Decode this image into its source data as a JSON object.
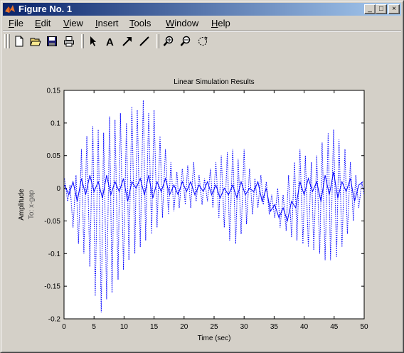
{
  "window": {
    "title": "Figure No. 1"
  },
  "title_buttons": {
    "minimize": "_",
    "maximize": "□",
    "close": "×"
  },
  "menu": [
    {
      "label": "File",
      "u": "F",
      "rest": "ile"
    },
    {
      "label": "Edit",
      "u": "E",
      "rest": "dit"
    },
    {
      "label": "View",
      "u": "V",
      "rest": "iew"
    },
    {
      "label": "Insert",
      "u": "I",
      "rest": "nsert"
    },
    {
      "label": "Tools",
      "u": "T",
      "rest": "ools"
    },
    {
      "label": "Window",
      "u": "W",
      "rest": "indow"
    },
    {
      "label": "Help",
      "u": "H",
      "rest": "elp"
    }
  ],
  "toolbar": {
    "icons": [
      "new-file-icon",
      "open-folder-icon",
      "save-disk-icon",
      "print-icon",
      "select-arrow-icon",
      "insert-text-icon",
      "insert-arrow-icon",
      "insert-line-icon",
      "zoom-in-icon",
      "zoom-out-icon",
      "rotate-icon"
    ],
    "text_tool_label": "A"
  },
  "colors": {
    "titlebar_start": "#0a246a",
    "titlebar_end": "#a6caf0",
    "window_bg": "#d4d0c8",
    "series": "#0000ff"
  },
  "chart_data": {
    "type": "line",
    "title": "Linear Simulation Results",
    "xlabel": "Time (sec)",
    "ylabel": "Amplitude",
    "ylabel2": "To: x-gap",
    "xlim": [
      0,
      50
    ],
    "ylim": [
      -0.2,
      0.15
    ],
    "xticks": [
      0,
      5,
      10,
      15,
      20,
      25,
      30,
      35,
      40,
      45,
      50
    ],
    "yticks": [
      -0.2,
      -0.15,
      -0.1,
      -0.05,
      0,
      0.05,
      0.1,
      0.15
    ],
    "ytick_labels": [
      "-0.2",
      "-0.15",
      "-0.1",
      "-0.05",
      "0",
      "0.05",
      "0.1",
      "0.15"
    ],
    "grid": false,
    "series": [
      {
        "style": "dotted",
        "x": [
          0.1,
          0.6,
          1.0,
          1.5,
          2.0,
          2.4,
          2.9,
          3.3,
          3.8,
          4.3,
          4.8,
          5.2,
          5.7,
          6.2,
          6.6,
          7.1,
          7.6,
          8.0,
          8.5,
          9.0,
          9.4,
          9.9,
          10.4,
          10.8,
          11.3,
          11.8,
          12.2,
          12.7,
          13.2,
          13.6,
          14.1,
          14.6,
          15.0,
          15.5,
          16.0,
          16.4,
          16.9,
          17.4,
          17.8,
          18.3,
          18.8,
          19.2,
          19.7,
          20.2,
          20.6,
          21.1,
          21.6,
          22.0,
          22.5,
          23.0,
          23.4,
          23.9,
          24.4,
          24.8,
          25.3,
          25.8,
          26.2,
          26.7,
          27.2,
          27.6,
          28.1,
          28.6,
          29.0,
          29.5,
          30.0,
          30.4,
          30.9,
          31.4,
          31.8,
          32.3,
          32.8,
          33.2,
          33.7,
          34.2,
          34.6,
          35.1,
          35.6,
          36.0,
          36.5,
          37.0,
          37.4,
          37.9,
          38.4,
          38.8,
          39.3,
          39.8,
          40.2,
          40.7,
          41.2,
          41.6,
          42.1,
          42.6,
          43.0,
          43.5,
          44.0,
          44.4,
          44.9,
          45.4,
          45.8,
          46.3,
          46.8,
          47.2,
          47.7,
          48.2,
          48.6,
          49.1,
          49.6,
          50.0
        ],
        "y": [
          0.015,
          -0.02,
          0.005,
          -0.06,
          0.02,
          -0.085,
          0.06,
          -0.1,
          0.08,
          -0.12,
          0.095,
          -0.165,
          0.09,
          -0.19,
          0.085,
          -0.17,
          0.11,
          -0.16,
          0.105,
          -0.14,
          0.115,
          -0.125,
          0.1,
          -0.11,
          0.125,
          -0.1,
          0.12,
          -0.09,
          0.135,
          -0.08,
          0.115,
          -0.07,
          0.12,
          -0.06,
          0.08,
          -0.045,
          0.06,
          -0.04,
          0.04,
          -0.035,
          0.025,
          -0.03,
          0.03,
          -0.025,
          0.035,
          -0.03,
          0.04,
          -0.02,
          0.02,
          -0.025,
          0.015,
          -0.02,
          0.03,
          -0.03,
          0.04,
          -0.045,
          0.05,
          -0.06,
          0.055,
          -0.08,
          0.06,
          -0.085,
          0.045,
          -0.07,
          0.06,
          -0.055,
          0.03,
          -0.04,
          0.015,
          -0.03,
          0.02,
          -0.025,
          0.01,
          -0.04,
          -0.01,
          -0.045,
          0.0,
          -0.06,
          -0.01,
          -0.065,
          0.02,
          -0.075,
          0.04,
          -0.08,
          0.06,
          -0.085,
          0.05,
          -0.09,
          0.04,
          -0.095,
          0.05,
          -0.1,
          0.07,
          -0.11,
          0.085,
          -0.11,
          0.09,
          -0.105,
          0.075,
          -0.09,
          0.06,
          -0.07,
          0.04,
          -0.05,
          0.02,
          -0.03,
          0.01,
          -0.01
        ]
      },
      {
        "style": "solid",
        "x": [
          0.1,
          0.8,
          1.5,
          2.2,
          2.9,
          3.6,
          4.3,
          5.0,
          5.7,
          6.4,
          7.1,
          7.8,
          8.5,
          9.2,
          9.9,
          10.6,
          11.3,
          12.0,
          12.7,
          13.4,
          14.1,
          14.8,
          15.5,
          16.2,
          16.9,
          17.6,
          18.3,
          19.0,
          19.7,
          20.4,
          21.1,
          21.8,
          22.5,
          23.2,
          23.9,
          24.6,
          25.3,
          26.0,
          26.7,
          27.4,
          28.1,
          28.8,
          29.5,
          30.2,
          30.9,
          31.6,
          32.3,
          33.0,
          33.7,
          34.4,
          35.1,
          35.8,
          36.5,
          37.2,
          37.9,
          38.6,
          39.3,
          40.0,
          40.7,
          41.4,
          42.1,
          42.8,
          43.5,
          44.2,
          44.9,
          45.6,
          46.3,
          47.0,
          47.7,
          48.4,
          49.1,
          49.8
        ],
        "y": [
          0.005,
          -0.01,
          0.01,
          -0.02,
          0.015,
          -0.01,
          0.02,
          -0.005,
          0.01,
          -0.015,
          0.02,
          -0.01,
          0.01,
          -0.005,
          0.015,
          -0.02,
          0.01,
          0.0,
          0.015,
          -0.01,
          0.02,
          -0.015,
          0.01,
          -0.005,
          0.015,
          -0.01,
          0.005,
          -0.01,
          0.01,
          -0.005,
          0.01,
          -0.01,
          0.005,
          -0.005,
          0.01,
          -0.01,
          0.005,
          -0.015,
          0.0,
          -0.01,
          0.005,
          -0.015,
          0.01,
          -0.01,
          0.0,
          -0.005,
          0.01,
          -0.02,
          0.0,
          -0.035,
          -0.025,
          -0.045,
          -0.03,
          -0.05,
          -0.02,
          -0.03,
          0.01,
          -0.01,
          0.015,
          -0.005,
          0.01,
          -0.02,
          0.02,
          -0.01,
          0.025,
          -0.015,
          0.01,
          -0.005,
          0.015,
          -0.02,
          0.005,
          0.01
        ]
      }
    ]
  }
}
